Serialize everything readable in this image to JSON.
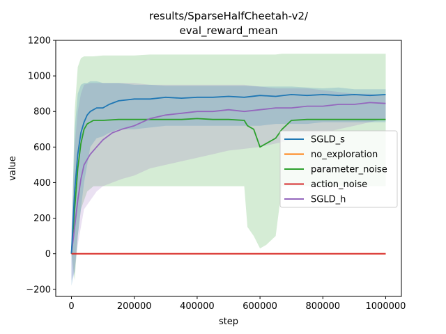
{
  "chart_data": {
    "type": "line",
    "title_lines": [
      "results/SparseHalfCheetah-v2/",
      "eval_reward_mean"
    ],
    "xlabel": "step",
    "ylabel": "value",
    "xlim": [
      -50000,
      1050000
    ],
    "ylim": [
      -240,
      1200
    ],
    "xticks": [
      0,
      200000,
      400000,
      600000,
      800000,
      1000000
    ],
    "xtick_labels": [
      "0",
      "200000",
      "400000",
      "600000",
      "800000",
      "1000000"
    ],
    "yticks": [
      -200,
      0,
      200,
      400,
      600,
      800,
      1000,
      1200
    ],
    "ytick_labels": [
      "−200",
      "0",
      "200",
      "400",
      "600",
      "800",
      "1000",
      "1200"
    ],
    "legend_placement": "center-right",
    "series": [
      {
        "name": "SGLD_s",
        "color": "#1f77b4",
        "x": [
          0,
          10000,
          20000,
          30000,
          40000,
          50000,
          60000,
          80000,
          100000,
          120000,
          150000,
          200000,
          250000,
          300000,
          350000,
          400000,
          450000,
          500000,
          550000,
          600000,
          650000,
          700000,
          750000,
          800000,
          850000,
          900000,
          950000,
          1000000
        ],
        "y": [
          0,
          350,
          560,
          680,
          740,
          780,
          800,
          820,
          820,
          840,
          860,
          870,
          870,
          880,
          875,
          880,
          880,
          885,
          880,
          890,
          885,
          895,
          890,
          895,
          890,
          895,
          890,
          895
        ],
        "upper": [
          120,
          700,
          900,
          950,
          960,
          960,
          970,
          970,
          960,
          960,
          960,
          950,
          950,
          945,
          945,
          945,
          945,
          945,
          945,
          940,
          940,
          940,
          935,
          930,
          935,
          925,
          925,
          925
        ],
        "lower": [
          -180,
          -100,
          100,
          250,
          400,
          500,
          600,
          650,
          660,
          680,
          700,
          700,
          710,
          720,
          720,
          720,
          720,
          720,
          720,
          720,
          730,
          730,
          730,
          740,
          740,
          740,
          740,
          740
        ]
      },
      {
        "name": "no_exploration",
        "color": "#ff7f0e",
        "x": [
          0,
          1000000
        ],
        "y": [
          0,
          0
        ]
      },
      {
        "name": "parameter_noise",
        "color": "#2ca02c",
        "x": [
          0,
          10000,
          20000,
          30000,
          40000,
          50000,
          70000,
          100000,
          150000,
          200000,
          250000,
          300000,
          350000,
          400000,
          450000,
          500000,
          550000,
          560000,
          580000,
          600000,
          620000,
          650000,
          670000,
          700000,
          750000,
          800000,
          850000,
          900000,
          950000,
          1000000
        ],
        "y": [
          0,
          250,
          480,
          620,
          700,
          730,
          750,
          750,
          755,
          755,
          755,
          755,
          755,
          760,
          755,
          755,
          750,
          720,
          700,
          600,
          620,
          650,
          700,
          750,
          755,
          755,
          755,
          755,
          755,
          755
        ],
        "upper": [
          0,
          800,
          1050,
          1100,
          1110,
          1110,
          1110,
          1115,
          1115,
          1115,
          1120,
          1120,
          1120,
          1120,
          1120,
          1120,
          1120,
          1120,
          1120,
          1120,
          1120,
          1120,
          1125,
          1125,
          1125,
          1125,
          1125,
          1125,
          1125,
          1125
        ],
        "lower": [
          0,
          -150,
          100,
          250,
          300,
          350,
          380,
          380,
          380,
          380,
          380,
          380,
          380,
          380,
          380,
          380,
          380,
          150,
          100,
          30,
          50,
          100,
          380,
          380,
          380,
          380,
          380,
          380,
          380,
          380
        ]
      },
      {
        "name": "action_noise",
        "color": "#d62728",
        "x": [
          0,
          1000000
        ],
        "y": [
          0,
          0
        ]
      },
      {
        "name": "SGLD_h",
        "color": "#9467bd",
        "x": [
          0,
          10000,
          20000,
          30000,
          40000,
          60000,
          80000,
          100000,
          130000,
          160000,
          200000,
          250000,
          300000,
          350000,
          400000,
          450000,
          500000,
          550000,
          600000,
          650000,
          700000,
          750000,
          800000,
          850000,
          900000,
          950000,
          1000000
        ],
        "y": [
          0,
          150,
          300,
          420,
          500,
          560,
          600,
          640,
          680,
          700,
          720,
          760,
          780,
          790,
          800,
          800,
          810,
          800,
          810,
          820,
          820,
          830,
          830,
          840,
          840,
          850,
          845
        ],
        "upper": [
          100,
          600,
          800,
          900,
          950,
          960,
          960,
          960,
          960,
          960,
          960,
          950,
          950,
          950,
          950,
          950,
          950,
          950,
          940,
          930,
          930,
          930,
          920,
          910,
          900,
          900,
          890
        ],
        "lower": [
          -150,
          -100,
          50,
          150,
          250,
          300,
          350,
          380,
          400,
          420,
          440,
          480,
          500,
          520,
          540,
          560,
          580,
          590,
          600,
          620,
          640,
          660,
          680,
          700,
          720,
          740,
          760
        ]
      }
    ]
  }
}
